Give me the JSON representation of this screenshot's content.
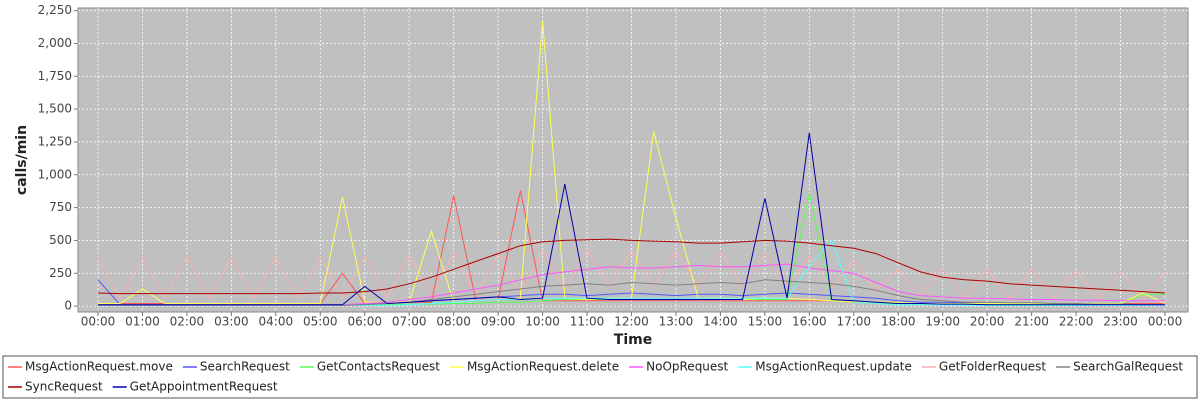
{
  "chart_data": {
    "type": "line",
    "x_label": "Time",
    "y_label": "calls/min",
    "x": [
      "00:00",
      null,
      "01:00",
      null,
      "02:00",
      null,
      "03:00",
      null,
      "04:00",
      null,
      "05:00",
      null,
      "06:00",
      null,
      "07:00",
      null,
      "08:00",
      null,
      "09:00",
      null,
      "10:00",
      null,
      "11:00",
      null,
      "12:00",
      null,
      "13:00",
      null,
      "14:00",
      null,
      "15:00",
      null,
      "16:00",
      null,
      "17:00",
      null,
      "18:00",
      null,
      "19:00",
      null,
      "20:00",
      null,
      "21:00",
      null,
      "22:00",
      null,
      "23:00",
      null,
      "00:00"
    ],
    "ylim": [
      -45,
      2270
    ],
    "yticks": [
      0,
      250,
      500,
      750,
      {
        "value": 1000,
        "label": "1,000"
      },
      {
        "value": 1250,
        "label": "1,250"
      },
      {
        "value": 1500,
        "label": "1,500"
      },
      {
        "value": 1750,
        "label": "1,750"
      },
      {
        "value": 2000,
        "label": "2,000"
      },
      {
        "value": 2250,
        "label": "2,250"
      }
    ],
    "grid": true,
    "series": [
      {
        "name": "MsgActionRequest.move",
        "color": "#ff5555",
        "values": [
          20,
          20,
          20,
          20,
          20,
          20,
          20,
          20,
          20,
          20,
          20,
          250,
          20,
          20,
          30,
          30,
          840,
          40,
          50,
          880,
          40,
          40,
          40,
          40,
          40,
          40,
          40,
          40,
          40,
          40,
          40,
          40,
          40,
          40,
          30,
          30,
          20,
          20,
          20,
          20,
          20,
          20,
          20,
          20,
          20,
          20,
          20,
          20,
          20
        ]
      },
      {
        "name": "SearchRequest",
        "color": "#5555ff",
        "values": [
          200,
          10,
          10,
          10,
          10,
          10,
          10,
          10,
          10,
          10,
          10,
          10,
          15,
          20,
          30,
          40,
          50,
          60,
          70,
          80,
          90,
          90,
          80,
          90,
          100,
          90,
          80,
          90,
          90,
          80,
          90,
          100,
          90,
          80,
          70,
          60,
          40,
          30,
          30,
          25,
          20,
          20,
          20,
          20,
          15,
          15,
          15,
          10,
          10
        ]
      },
      {
        "name": "GetContactsRequest",
        "color": "#55ff55",
        "values": [
          10,
          10,
          10,
          10,
          10,
          10,
          10,
          10,
          10,
          10,
          10,
          10,
          10,
          10,
          15,
          15,
          20,
          20,
          30,
          30,
          40,
          50,
          50,
          50,
          50,
          50,
          50,
          50,
          50,
          50,
          50,
          50,
          860,
          40,
          30,
          20,
          20,
          15,
          15,
          15,
          15,
          15,
          15,
          15,
          15,
          15,
          15,
          90,
          90
        ]
      },
      {
        "name": "MsgActionRequest.delete",
        "color": "#ffff55",
        "values": [
          20,
          20,
          130,
          20,
          20,
          20,
          20,
          20,
          20,
          20,
          20,
          830,
          30,
          30,
          30,
          570,
          30,
          40,
          50,
          60,
          2170,
          60,
          50,
          60,
          60,
          1330,
          670,
          60,
          60,
          50,
          60,
          60,
          50,
          40,
          30,
          30,
          30,
          20,
          20,
          20,
          20,
          20,
          20,
          20,
          20,
          20,
          20,
          100,
          20
        ]
      },
      {
        "name": "NoOpRequest",
        "color": "#ff55ff",
        "values": [
          10,
          10,
          10,
          10,
          10,
          10,
          10,
          10,
          10,
          10,
          10,
          10,
          20,
          30,
          50,
          70,
          100,
          130,
          160,
          200,
          240,
          260,
          280,
          300,
          290,
          290,
          300,
          310,
          300,
          300,
          310,
          320,
          290,
          270,
          250,
          180,
          110,
          80,
          70,
          60,
          60,
          55,
          50,
          50,
          45,
          45,
          40,
          40,
          40
        ]
      },
      {
        "name": "MsgActionRequest.update",
        "color": "#55ffff",
        "values": [
          5,
          5,
          5,
          5,
          5,
          5,
          5,
          5,
          5,
          5,
          5,
          5,
          5,
          5,
          10,
          20,
          30,
          40,
          50,
          50,
          60,
          60,
          60,
          60,
          60,
          60,
          60,
          60,
          60,
          60,
          60,
          60,
          300,
          500,
          30,
          20,
          10,
          10,
          10,
          5,
          5,
          5,
          5,
          5,
          5,
          5,
          5,
          5,
          5
        ]
      },
      {
        "name": "GetFolderRequest",
        "color": "#ffafaf",
        "values": [
          380,
          60,
          370,
          60,
          380,
          60,
          370,
          60,
          370,
          60,
          370,
          60,
          380,
          60,
          390,
          70,
          400,
          80,
          400,
          100,
          420,
          120,
          430,
          150,
          420,
          150,
          420,
          150,
          410,
          150,
          400,
          150,
          380,
          140,
          350,
          120,
          280,
          80,
          280,
          60,
          280,
          60,
          280,
          60,
          270,
          60,
          260,
          60,
          260
        ]
      },
      {
        "name": "SearchGalRequest",
        "color": "#808080",
        "values": [
          5,
          5,
          5,
          5,
          5,
          5,
          5,
          5,
          5,
          5,
          5,
          5,
          10,
          20,
          30,
          50,
          70,
          90,
          110,
          130,
          150,
          160,
          170,
          160,
          180,
          170,
          160,
          170,
          180,
          170,
          200,
          190,
          180,
          170,
          150,
          120,
          80,
          50,
          40,
          30,
          30,
          25,
          25,
          20,
          20,
          15,
          15,
          10,
          10
        ]
      },
      {
        "name": "SyncRequest",
        "color": "#aa0000",
        "values": [
          100,
          95,
          95,
          95,
          95,
          95,
          95,
          95,
          95,
          95,
          100,
          100,
          110,
          130,
          170,
          220,
          280,
          340,
          400,
          460,
          490,
          500,
          505,
          510,
          500,
          495,
          490,
          480,
          480,
          490,
          500,
          495,
          480,
          460,
          440,
          400,
          330,
          260,
          220,
          200,
          190,
          170,
          160,
          150,
          140,
          130,
          120,
          110,
          100
        ]
      },
      {
        "name": "GetAppointmentRequest",
        "color": "#0000aa",
        "values": [
          10,
          10,
          10,
          10,
          10,
          10,
          10,
          10,
          10,
          10,
          10,
          10,
          150,
          20,
          30,
          40,
          50,
          60,
          70,
          50,
          60,
          930,
          60,
          50,
          50,
          50,
          50,
          50,
          50,
          50,
          820,
          60,
          1320,
          50,
          40,
          30,
          20,
          20,
          15,
          15,
          10,
          10,
          10,
          10,
          10,
          10,
          10,
          10,
          10
        ]
      }
    ]
  }
}
